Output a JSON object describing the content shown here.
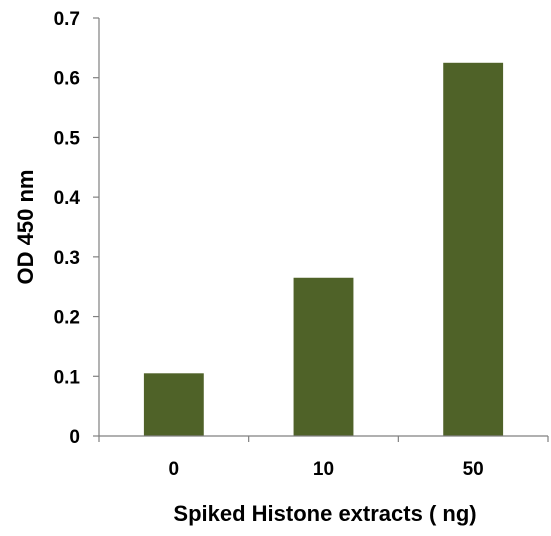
{
  "chart_data": {
    "type": "bar",
    "title": "",
    "xlabel": "Spiked Histone  extracts ( ng)",
    "ylabel": "OD 450 nm",
    "categories": [
      "0",
      "10",
      "50"
    ],
    "values": [
      0.105,
      0.265,
      0.625
    ],
    "ylim": [
      0,
      0.7
    ],
    "yticks": [
      "0",
      "0.1",
      "0.2",
      "0.3",
      "0.4",
      "0.5",
      "0.6",
      "0.7"
    ],
    "grid": false,
    "legend": "none",
    "bar_color": "#4f6228",
    "axis_color": "#808080"
  }
}
